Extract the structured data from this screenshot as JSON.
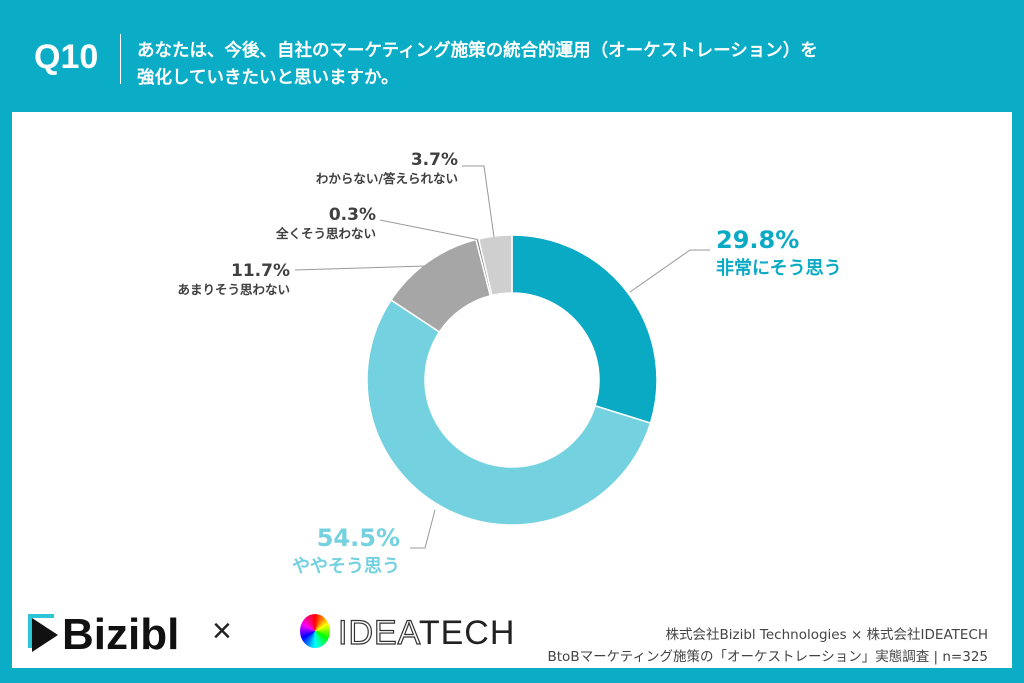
{
  "header": {
    "question_no": "Q10",
    "question_line1": "あなたは、今後、自社のマーケティング施策の統合的運用（オーケストレーション）を",
    "question_line2": "強化していきたいと思いますか。"
  },
  "chart_data": {
    "type": "pie",
    "donut": true,
    "categories": [
      "非常にそう思う",
      "ややそう思う",
      "あまりそう思わない",
      "全くそう思わない",
      "わからない/答えられない"
    ],
    "values": [
      29.8,
      54.5,
      11.7,
      0.3,
      3.7
    ],
    "labels": [
      "29.8%",
      "54.5%",
      "11.7%",
      "0.3%",
      "3.7%"
    ],
    "colors": [
      "#0aaac4",
      "#74d1e0",
      "#a6a6a6",
      "#7f7f7f",
      "#cfcfcf"
    ],
    "label_colors": [
      "#0aaac4",
      "#74d1e0",
      "#404040",
      "#404040",
      "#404040"
    ]
  },
  "footer": {
    "logo1": "Bizibl",
    "cross": "×",
    "logo2_light": "IDEA",
    "logo2_bold": "TECH",
    "credit_line1": "株式会社Bizibl Technologies × 株式会社IDEATECH",
    "credit_line2": "BtoBマーケティング施策の「オーケストレーション」実態調査 | n=325"
  }
}
